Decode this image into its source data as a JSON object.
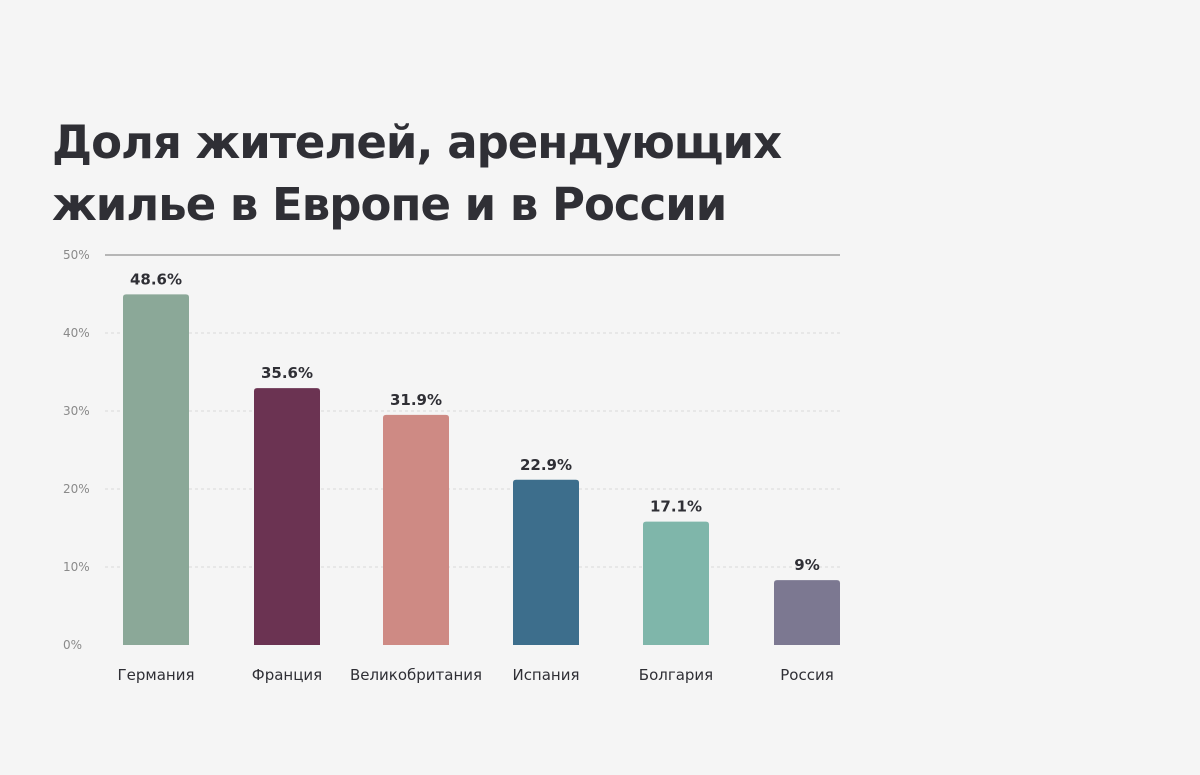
{
  "chart_data": {
    "type": "bar",
    "title_lines": [
      "Доля жителей, арендующих",
      "жилье в Европе и в России"
    ],
    "categories": [
      "Германия",
      "Франция",
      "Великобритания",
      "Испания",
      "Болгария",
      "Россия"
    ],
    "values": [
      48.6,
      35.6,
      31.9,
      22.9,
      17.1,
      9
    ],
    "value_labels": [
      "48.6%",
      "35.6%",
      "31.9%",
      "22.9%",
      "17.1%",
      "9%"
    ],
    "bar_colors": [
      "#8ba898",
      "#6b3352",
      "#ce8a84",
      "#3d6e8c",
      "#7fb6aa",
      "#7c7891"
    ],
    "y_ticks": [
      0,
      10,
      20,
      30,
      40,
      50
    ],
    "y_tick_labels": [
      "0%",
      "10%",
      "20%",
      "30%",
      "40%",
      "50%"
    ],
    "ylim": [
      0,
      50
    ],
    "grid": true,
    "xlabel": "",
    "ylabel": ""
  }
}
